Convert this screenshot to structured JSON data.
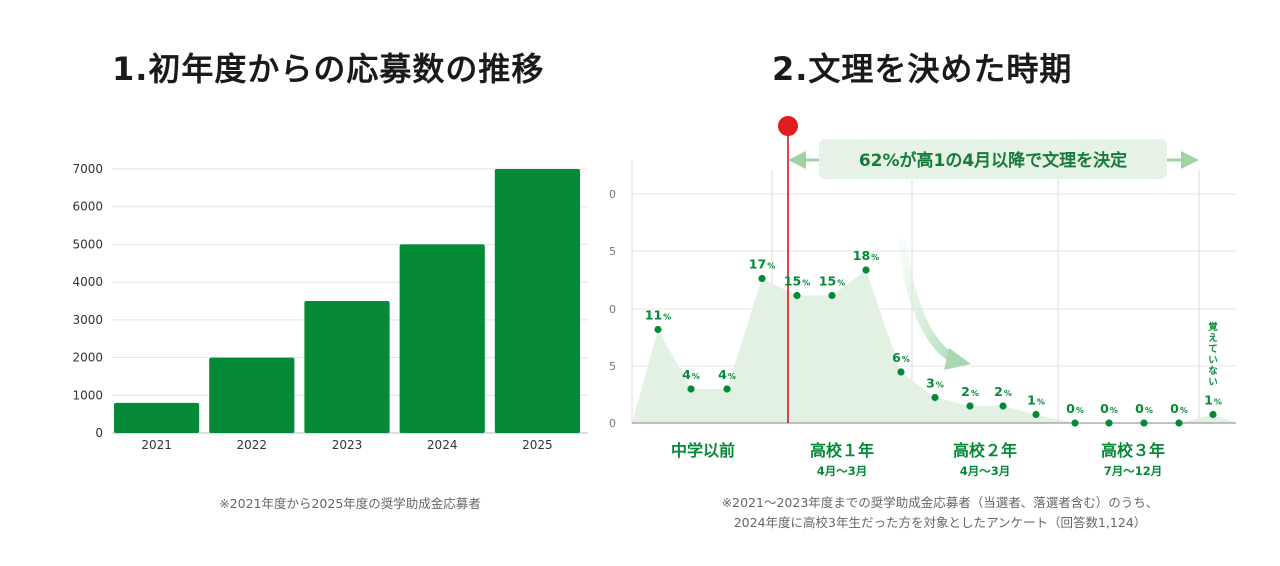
{
  "chart1": {
    "title": "1.初年度からの応募数の推移",
    "note": "※2021年度から2025年度の奨学助成金応募者",
    "chart_data": {
      "type": "bar",
      "categories": [
        "2021",
        "2022",
        "2023",
        "2024",
        "2025"
      ],
      "values": [
        800,
        2000,
        3500,
        5000,
        7000
      ],
      "yticks": [
        "0",
        "1000",
        "2000",
        "3000",
        "4000",
        "5000",
        "6000",
        "7000"
      ],
      "ylim": [
        0,
        7000
      ],
      "grid": true,
      "bar_color": "#048a37"
    }
  },
  "chart2": {
    "title": "2.文理を決めた時期",
    "note_line1": "※2021～2023年度までの奨学助成金応募者（当選者、落選者含む）のうち、",
    "note_line2": "2024年度に高校3年生だった方を対象としたアンケート（回答数1,124）",
    "banner": "62%が高1の4月以降で文理を決定",
    "chart_data": {
      "type": "area",
      "values": [
        11,
        4,
        4,
        17,
        15,
        15,
        18,
        6,
        3,
        2,
        2,
        1,
        0,
        0,
        0,
        0,
        1
      ],
      "labels": [
        "11",
        "4",
        "4",
        "17",
        "15",
        "15",
        "18",
        "6",
        "3",
        "2",
        "2",
        "1",
        "0",
        "0",
        "0",
        "0",
        "1"
      ],
      "unit": "%",
      "last_point_note": "覚えていない",
      "ytick_fragments": [
        "0",
        "5",
        "0",
        "5",
        "0"
      ],
      "groups": [
        {
          "label": "中学以前",
          "sub": ""
        },
        {
          "label": "高校１年",
          "sub": "4月～3月"
        },
        {
          "label": "高校２年",
          "sub": "4月～3月"
        },
        {
          "label": "高校３年",
          "sub": "7月～12月"
        }
      ],
      "line_color": "#048a37",
      "fill_color": "#e3f1e3",
      "marker_color": "#cc1b1b",
      "banner_color": "#e6f2e5",
      "arrow_color": "#9fd3a6"
    }
  }
}
